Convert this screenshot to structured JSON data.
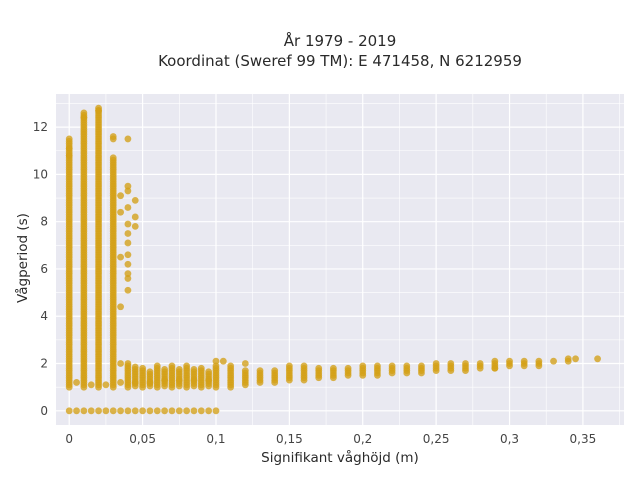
{
  "chart_data": {
    "type": "scatter",
    "title_line1": "År 1979 - 2019",
    "title_line2": "Koordinat (Sweref 99 TM): E 471458, N 6212959",
    "xlabel": "Signifikant våghöjd (m)",
    "ylabel": "Vågperiod (s)",
    "xlim": [
      -0.009,
      0.378
    ],
    "ylim": [
      -0.6,
      13.4
    ],
    "grid": true,
    "legend": "none",
    "colors": {
      "marker": "#D4A017",
      "plot_bg": "#E9E9F1",
      "grid": "#ffffff"
    },
    "x_ticks": [
      0,
      0.05,
      0.1,
      0.15,
      0.2,
      0.25,
      0.3,
      0.35
    ],
    "x_tick_labels": [
      "0",
      "0,05",
      "0,1",
      "0,15",
      "0,2",
      "0,25",
      "0,3",
      "0,35"
    ],
    "y_ticks": [
      0,
      2,
      4,
      6,
      8,
      10,
      12
    ],
    "y_tick_labels": [
      "0",
      "2",
      "4",
      "6",
      "8",
      "10",
      "12"
    ],
    "zero_points_x": [
      0,
      0.005,
      0.01,
      0.015,
      0.02,
      0.025,
      0.03,
      0.035,
      0.04,
      0.045,
      0.05,
      0.055,
      0.06,
      0.065,
      0.07,
      0.075,
      0.08,
      0.085,
      0.09,
      0.095,
      0.1
    ],
    "columns": [
      {
        "x": 0.0,
        "ymin": 1.0,
        "ymax": 11.5,
        "step": 0.1
      },
      {
        "x": 0.01,
        "ymin": 1.0,
        "ymax": 12.6,
        "step": 0.1
      },
      {
        "x": 0.02,
        "ymin": 1.0,
        "ymax": 12.8,
        "step": 0.1
      },
      {
        "x": 0.03,
        "ymin": 1.0,
        "ymax": 10.7,
        "step": 0.1
      },
      {
        "x": 0.04,
        "ymin": 1.0,
        "ymax": 2.0,
        "step": 0.1
      },
      {
        "x": 0.05,
        "ymin": 1.0,
        "ymax": 1.8,
        "step": 0.1
      },
      {
        "x": 0.06,
        "ymin": 1.0,
        "ymax": 1.9,
        "step": 0.1
      },
      {
        "x": 0.07,
        "ymin": 1.0,
        "ymax": 1.9,
        "step": 0.1
      },
      {
        "x": 0.08,
        "ymin": 1.0,
        "ymax": 1.9,
        "step": 0.1
      },
      {
        "x": 0.09,
        "ymin": 1.0,
        "ymax": 1.8,
        "step": 0.1
      },
      {
        "x": 0.1,
        "ymin": 1.0,
        "ymax": 1.9,
        "step": 0.1
      },
      {
        "x": 0.11,
        "ymin": 1.0,
        "ymax": 1.9,
        "step": 0.1
      },
      {
        "x": 0.12,
        "ymin": 1.1,
        "ymax": 1.7,
        "step": 0.1
      },
      {
        "x": 0.13,
        "ymin": 1.2,
        "ymax": 1.7,
        "step": 0.1
      },
      {
        "x": 0.14,
        "ymin": 1.2,
        "ymax": 1.7,
        "step": 0.1
      },
      {
        "x": 0.15,
        "ymin": 1.3,
        "ymax": 1.8,
        "step": 0.1
      },
      {
        "x": 0.16,
        "ymin": 1.3,
        "ymax": 1.8,
        "step": 0.1
      },
      {
        "x": 0.17,
        "ymin": 1.4,
        "ymax": 1.8,
        "step": 0.1
      },
      {
        "x": 0.18,
        "ymin": 1.4,
        "ymax": 1.8,
        "step": 0.1
      },
      {
        "x": 0.19,
        "ymin": 1.5,
        "ymax": 1.8,
        "step": 0.1
      },
      {
        "x": 0.2,
        "ymin": 1.5,
        "ymax": 1.9,
        "step": 0.1
      },
      {
        "x": 0.21,
        "ymin": 1.5,
        "ymax": 1.9,
        "step": 0.1
      },
      {
        "x": 0.22,
        "ymin": 1.6,
        "ymax": 1.9,
        "step": 0.1
      },
      {
        "x": 0.23,
        "ymin": 1.6,
        "ymax": 1.9,
        "step": 0.1
      },
      {
        "x": 0.24,
        "ymin": 1.6,
        "ymax": 1.9,
        "step": 0.1
      },
      {
        "x": 0.25,
        "ymin": 1.7,
        "ymax": 2.0,
        "step": 0.1
      },
      {
        "x": 0.26,
        "ymin": 1.7,
        "ymax": 2.0,
        "step": 0.1
      },
      {
        "x": 0.27,
        "ymin": 1.7,
        "ymax": 2.0,
        "step": 0.1
      },
      {
        "x": 0.28,
        "ymin": 1.8,
        "ymax": 2.0,
        "step": 0.1
      },
      {
        "x": 0.29,
        "ymin": 1.8,
        "ymax": 2.1,
        "step": 0.1
      },
      {
        "x": 0.3,
        "ymin": 1.9,
        "ymax": 2.1,
        "step": 0.1
      },
      {
        "x": 0.31,
        "ymin": 1.9,
        "ymax": 2.1,
        "step": 0.1
      },
      {
        "x": 0.32,
        "ymin": 1.9,
        "ymax": 2.1,
        "step": 0.1
      },
      {
        "x": 0.34,
        "ymin": 2.1,
        "ymax": 2.2,
        "step": 0.1
      }
    ],
    "extra_points": [
      {
        "x": 0.005,
        "y": 1.2
      },
      {
        "x": 0.015,
        "y": 1.1
      },
      {
        "x": 0.025,
        "y": 1.1
      },
      {
        "x": 0.035,
        "y": 1.2
      },
      {
        "x": 0.045,
        "y": 1.2
      },
      {
        "x": 0.055,
        "y": 1.2
      },
      {
        "x": 0.065,
        "y": 1.3
      },
      {
        "x": 0.075,
        "y": 1.3
      },
      {
        "x": 0.085,
        "y": 1.3
      },
      {
        "x": 0.095,
        "y": 1.3
      },
      {
        "x": 0.035,
        "y": 2.0
      },
      {
        "x": 0.035,
        "y": 4.4
      },
      {
        "x": 0.035,
        "y": 6.5
      },
      {
        "x": 0.035,
        "y": 8.4
      },
      {
        "x": 0.035,
        "y": 9.1
      },
      {
        "x": 0.03,
        "y": 11.6
      },
      {
        "x": 0.03,
        "y": 11.5
      },
      {
        "x": 0.04,
        "y": 9.5
      },
      {
        "x": 0.04,
        "y": 9.3
      },
      {
        "x": 0.04,
        "y": 8.6
      },
      {
        "x": 0.04,
        "y": 7.9
      },
      {
        "x": 0.04,
        "y": 7.5
      },
      {
        "x": 0.04,
        "y": 7.1
      },
      {
        "x": 0.04,
        "y": 6.6
      },
      {
        "x": 0.04,
        "y": 6.2
      },
      {
        "x": 0.04,
        "y": 5.8
      },
      {
        "x": 0.04,
        "y": 5.6
      },
      {
        "x": 0.04,
        "y": 5.1
      },
      {
        "x": 0.04,
        "y": 11.5
      },
      {
        "x": 0.045,
        "y": 8.9
      },
      {
        "x": 0.045,
        "y": 8.2
      },
      {
        "x": 0.045,
        "y": 7.8
      },
      {
        "x": 0.0,
        "y": 11.1
      },
      {
        "x": 0.0,
        "y": 10.8
      },
      {
        "x": 0.01,
        "y": 12.4
      },
      {
        "x": 0.02,
        "y": 12.7
      },
      {
        "x": 0.1,
        "y": 2.1
      },
      {
        "x": 0.105,
        "y": 2.1
      },
      {
        "x": 0.12,
        "y": 2.0
      },
      {
        "x": 0.15,
        "y": 1.9
      },
      {
        "x": 0.16,
        "y": 1.9
      },
      {
        "x": 0.29,
        "y": 1.8
      },
      {
        "x": 0.33,
        "y": 2.1
      },
      {
        "x": 0.345,
        "y": 2.2
      },
      {
        "x": 0.36,
        "y": 2.2
      }
    ]
  }
}
